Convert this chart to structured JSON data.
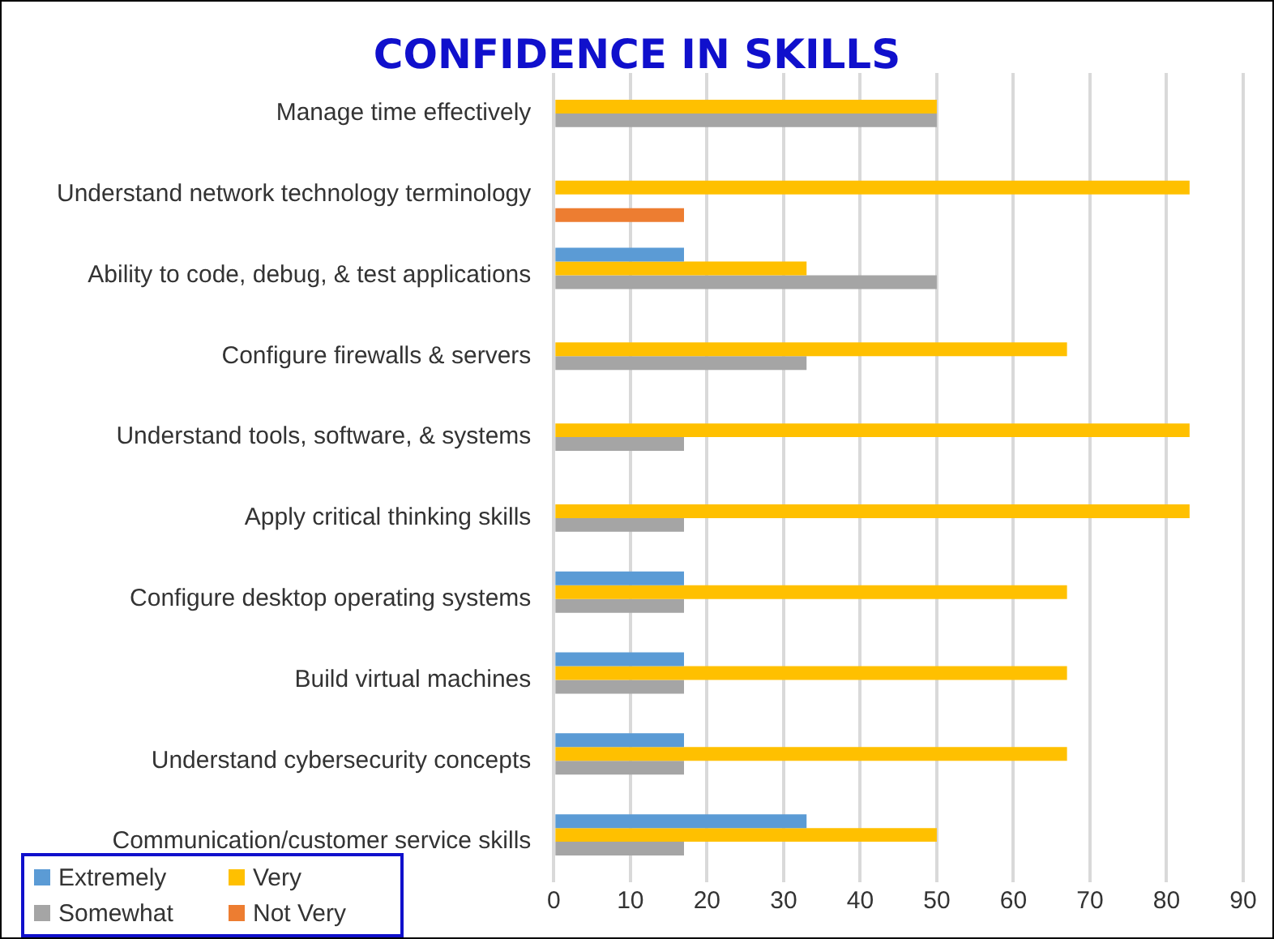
{
  "chart_data": {
    "type": "bar",
    "orientation": "horizontal",
    "title": "CONFIDENCE IN SKILLS",
    "categories": [
      "Manage time effectively",
      "Understand network technology terminology",
      "Ability to code, debug, & test applications",
      "Configure firewalls & servers",
      "Understand tools, software, & systems",
      "Apply critical thinking skills",
      "Configure desktop operating systems",
      "Build virtual machines",
      "Understand cybersecurity concepts",
      "Communication/customer service skills"
    ],
    "series": [
      {
        "name": "Extremely",
        "color": "#5b9bd5",
        "values": [
          0,
          0,
          17,
          0,
          0,
          0,
          17,
          17,
          17,
          33
        ]
      },
      {
        "name": "Very",
        "color": "#ffc000",
        "values": [
          50,
          83,
          33,
          67,
          83,
          83,
          67,
          67,
          67,
          50
        ]
      },
      {
        "name": "Somewhat",
        "color": "#a5a5a5",
        "values": [
          50,
          0,
          50,
          33,
          17,
          17,
          17,
          17,
          17,
          17
        ]
      },
      {
        "name": "Not Very",
        "color": "#ed7d31",
        "values": [
          0,
          17,
          0,
          0,
          0,
          0,
          0,
          0,
          0,
          0
        ]
      }
    ],
    "xlim": [
      0,
      90
    ],
    "xticks": [
      0,
      10,
      20,
      30,
      40,
      50,
      60,
      70,
      80,
      90
    ],
    "grid": "x",
    "legend": "bottom left"
  }
}
